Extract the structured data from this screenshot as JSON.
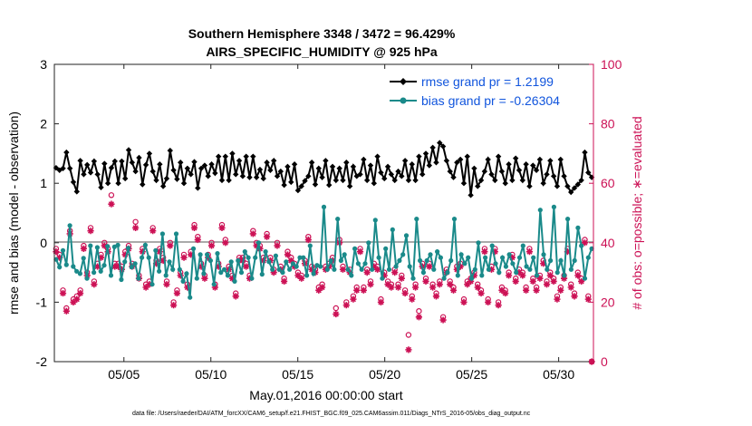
{
  "chart_data": {
    "type": "line",
    "title": "Southern Hemisphere 3348 / 3472 = 96.429%",
    "subtitle": "AIRS_SPECIFIC_HUMIDITY @ 925 hPa",
    "xlabel": "May.01,2016 00:00:00 start",
    "ylabel_left": "rmse and bias (model - observation)",
    "ylabel_right": "# of obs: o=possible; ∗=evaluated",
    "ylim_left": [
      -2,
      3
    ],
    "ylim_right": [
      0,
      100
    ],
    "xlim_days": [
      1,
      32
    ],
    "yticks_left": [
      "3",
      "2",
      "1",
      "0",
      "-1",
      "-2"
    ],
    "yticks_right": [
      "100",
      "80",
      "60",
      "40",
      "20",
      "0"
    ],
    "xticks": [
      "05/05",
      "05/10",
      "05/15",
      "05/20",
      "05/25",
      "05/30"
    ],
    "xtick_days": [
      5,
      10,
      15,
      20,
      25,
      30
    ],
    "footnote": "data file: /Users/raeder/DAI/ATM_forcXX/CAM6_setup/f.e21.FHIST_BGC.f09_025.CAM6assim.011/Diags_NTrS_2016-05/obs_diag_output.nc",
    "series": [
      {
        "name": "rmse grand pr = 1.2199",
        "axis": "left",
        "color": "#000000",
        "values": [
          1.26,
          1.22,
          1.25,
          1.52,
          1.25,
          1.02,
          0.86,
          1.38,
          1.15,
          1.31,
          1.18,
          1.37,
          1.15,
          0.93,
          1.33,
          1.0,
          1.26,
          1.37,
          1.0,
          1.37,
          1.08,
          1.56,
          1.35,
          1.2,
          1.43,
          0.98,
          1.31,
          1.5,
          1.2,
          1.05,
          1.32,
          0.95,
          1.08,
          1.55,
          1.22,
          1.07,
          1.35,
          1.0,
          1.25,
          1.15,
          1.36,
          0.92,
          1.25,
          1.3,
          1.12,
          1.32,
          1.17,
          1.45,
          1.05,
          1.45,
          1.05,
          1.5,
          1.15,
          1.38,
          1.12,
          1.45,
          1.1,
          1.45,
          1.1,
          1.23,
          1.08,
          1.35,
          1.22,
          1.38,
          1.12,
          1.2,
          0.97,
          1.28,
          1.02,
          1.32,
          0.88,
          0.95,
          1.04,
          1.12,
          1.35,
          0.98,
          1.25,
          1.1,
          1.38,
          0.97,
          1.28,
          1.05,
          1.25,
          1.05,
          1.35,
          0.95,
          1.28,
          1.12,
          1.15,
          1.4,
          1.05,
          1.3,
          1.0,
          1.45,
          1.18,
          1.08,
          1.28,
          1.15,
          1.05,
          1.2,
          1.12,
          1.38,
          1.05,
          1.32,
          1.05,
          1.45,
          1.15,
          1.5,
          1.3,
          1.6,
          1.35,
          1.68,
          1.62,
          1.38,
          1.2,
          1.1,
          1.35,
          1.4,
          1.0,
          1.45,
          0.8,
          1.25,
          0.95,
          1.05,
          1.2,
          1.4,
          1.15,
          1.05,
          1.45,
          1.2,
          1.0,
          1.32,
          1.05,
          1.42,
          1.22,
          1.05,
          1.32,
          0.95,
          1.3,
          1.22,
          1.4,
          1.0,
          1.15,
          1.38,
          1.12,
          0.95,
          1.4,
          1.12,
          0.95,
          0.85,
          0.92,
          0.98,
          1.05,
          1.52,
          1.18,
          1.1
        ]
      },
      {
        "name": "bias grand pr = -0.26304",
        "axis": "left",
        "color": "#1a8a8a",
        "values": [
          -0.28,
          -0.41,
          -0.13,
          -0.37,
          0.29,
          -0.4,
          -0.48,
          -0.52,
          -0.26,
          -0.6,
          -0.05,
          -0.5,
          -0.08,
          -0.48,
          -0.38,
          -0.06,
          -0.55,
          -0.07,
          -0.04,
          -0.62,
          -0.32,
          -0.09,
          -0.41,
          -0.35,
          -0.6,
          -0.25,
          -0.04,
          -0.25,
          -0.7,
          -0.13,
          -0.48,
          0.15,
          -0.55,
          -0.32,
          -0.45,
          0.15,
          -0.45,
          -0.65,
          -0.52,
          -0.92,
          -0.1,
          -0.6,
          -0.2,
          -0.52,
          -0.2,
          -0.3,
          -0.7,
          -0.18,
          -0.5,
          -0.45,
          -0.55,
          -0.32,
          -0.65,
          -0.3,
          -0.5,
          -0.15,
          -0.25,
          -0.6,
          -0.25,
          0.0,
          -0.53,
          -0.15,
          -0.32,
          -0.45,
          -0.22,
          -0.45,
          -0.5,
          -0.32,
          -0.45,
          -0.35,
          -0.4,
          -0.25,
          -0.25,
          -0.55,
          -0.05,
          -0.52,
          -0.38,
          -0.4,
          0.6,
          -0.45,
          -0.3,
          -0.45,
          0.4,
          -0.3,
          -0.2,
          -0.45,
          -0.55,
          -0.1,
          -0.35,
          -0.45,
          -0.35,
          0.0,
          -0.45,
          0.38,
          -0.25,
          -0.6,
          -0.1,
          -0.45,
          0.22,
          -0.4,
          -0.3,
          -0.2,
          0.12,
          -0.4,
          -0.6,
          0.4,
          -0.3,
          -0.5,
          -0.3,
          -0.2,
          -0.45,
          -0.15,
          -0.25,
          -0.6,
          -0.5,
          -0.3,
          0.4,
          -0.55,
          -0.2,
          -0.35,
          -0.25,
          -0.6,
          -0.45,
          0.0,
          -0.55,
          -0.25,
          -0.45,
          -0.05,
          -0.35,
          -0.5,
          -0.25,
          -0.4,
          -0.2,
          -0.35,
          -0.5,
          -0.25,
          -0.05,
          -0.4,
          -0.45,
          -0.25,
          -0.55,
          0.55,
          -0.2,
          -0.45,
          -0.3,
          0.6,
          -0.5,
          -0.3,
          -0.55,
          0.4,
          -0.45,
          -0.3,
          0.25,
          -0.05,
          -0.6,
          -0.25,
          -0.1
        ]
      },
      {
        "name": "# of obs possible",
        "axis": "right",
        "marker": "o",
        "color": "#cc1155",
        "values": [
          38,
          36,
          24,
          18,
          44,
          21,
          22,
          24,
          39,
          30,
          45,
          27,
          33,
          36,
          40,
          38,
          56,
          33,
          33,
          32,
          37,
          39,
          33,
          47,
          29,
          38,
          26,
          27,
          45,
          34,
          38,
          35,
          27,
          40,
          20,
          24,
          30,
          36,
          26,
          37,
          46,
          42,
          33,
          29,
          36,
          40,
          26,
          33,
          46,
          41,
          32,
          29,
          23,
          35,
          35,
          33,
          29,
          44,
          40,
          39,
          35,
          43,
          35,
          31,
          40,
          32,
          28,
          37,
          35,
          33,
          30,
          29,
          34,
          42,
          32,
          31,
          25,
          26,
          32,
          33,
          35,
          18,
          41,
          32,
          20,
          31,
          22,
          25,
          38,
          25,
          31,
          27,
          33,
          32,
          21,
          30,
          27,
          26,
          31,
          26,
          29,
          24,
          9,
          22,
          26,
          17,
          33,
          28,
          33,
          26,
          23,
          27,
          15,
          31,
          27,
          25,
          32,
          33,
          21,
          27,
          28,
          30,
          26,
          24,
          38,
          21,
          32,
          38,
          20,
          25,
          24,
          30,
          36,
          28,
          31,
          30,
          25,
          38,
          28,
          25,
          29,
          34,
          27,
          30,
          28,
          22,
          25,
          29,
          38,
          26,
          23,
          30,
          28,
          41,
          22,
          0
        ]
      },
      {
        "name": "# of obs evaluated",
        "axis": "right",
        "marker": "*",
        "color": "#cc1155",
        "values": [
          37,
          35,
          23,
          17,
          43,
          20,
          21,
          23,
          38,
          29,
          44,
          26,
          32,
          35,
          39,
          37,
          53,
          32,
          32,
          31,
          36,
          38,
          32,
          45,
          28,
          37,
          25,
          26,
          44,
          33,
          37,
          34,
          26,
          39,
          19,
          23,
          29,
          35,
          25,
          36,
          45,
          41,
          32,
          28,
          35,
          39,
          25,
          32,
          45,
          40,
          31,
          28,
          22,
          34,
          34,
          32,
          28,
          43,
          39,
          38,
          34,
          42,
          34,
          30,
          39,
          31,
          27,
          36,
          34,
          32,
          29,
          28,
          33,
          41,
          31,
          30,
          24,
          25,
          31,
          32,
          34,
          16,
          40,
          31,
          19,
          30,
          21,
          24,
          37,
          24,
          30,
          26,
          32,
          31,
          20,
          29,
          26,
          25,
          30,
          25,
          28,
          23,
          4,
          21,
          25,
          15,
          32,
          27,
          32,
          25,
          22,
          26,
          14,
          30,
          26,
          24,
          31,
          32,
          20,
          26,
          27,
          29,
          25,
          23,
          37,
          20,
          31,
          37,
          19,
          24,
          23,
          29,
          35,
          27,
          30,
          29,
          24,
          37,
          27,
          24,
          28,
          33,
          26,
          29,
          27,
          21,
          24,
          28,
          37,
          25,
          22,
          29,
          27,
          40,
          21,
          0
        ]
      }
    ],
    "legend_position": "top-right"
  }
}
